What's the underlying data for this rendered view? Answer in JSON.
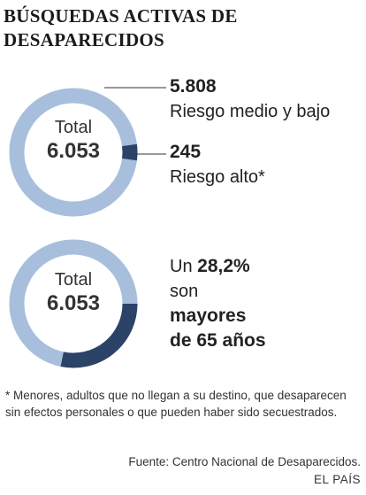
{
  "title_lines": [
    "BÚSQUEDAS ACTIVAS DE",
    "DESAPARECIDOS"
  ],
  "colors": {
    "light": "#a7bfdc",
    "dark": "#2b4366",
    "leader": "#333333"
  },
  "chart_data": [
    {
      "type": "pie",
      "center_label": "Total",
      "center_value": "6.053",
      "total": 6053,
      "slices": [
        {
          "value": 5808,
          "value_text": "5.808",
          "label": "Riesgo medio y bajo"
        },
        {
          "value": 245,
          "value_text": "245",
          "label": "Riesgo alto*"
        }
      ]
    },
    {
      "type": "pie",
      "center_label": "Total",
      "center_value": "6.053",
      "total": 6053,
      "highlight_percent": 28.2,
      "callout": {
        "prefix": "Un",
        "percent_text": "28,2%",
        "line2": "son",
        "line3": "mayores",
        "line4": "de 65 años"
      }
    }
  ],
  "footnote": "* Menores, adultos que no llegan a su destino, que desaparecen sin efectos personales o que pueden haber sido secuestrados.",
  "source": "Fuente: Centro Nacional de Desaparecidos.",
  "brand": "EL PAÍS"
}
